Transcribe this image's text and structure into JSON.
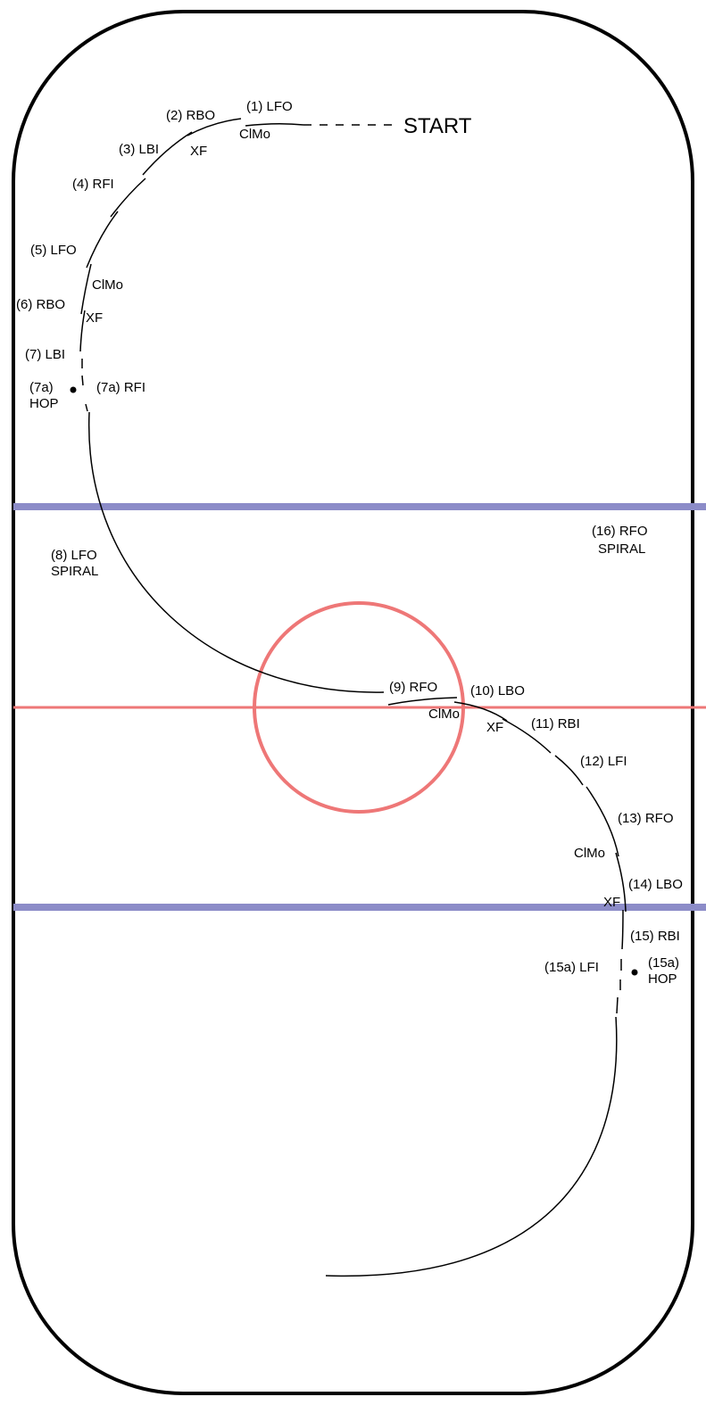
{
  "colors": {
    "rink_border": "#000000",
    "blue_lines": "#8c8cc8",
    "center_red_line": "#ee7777",
    "center_circle": "#ee7777",
    "pattern_line": "#000000"
  },
  "start_label": "START",
  "labels": {
    "l1": "(1) LFO",
    "l2": "(2) RBO",
    "clmo1": "ClMo",
    "l3": "(3) LBI",
    "xf1": "XF",
    "l4": "(4) RFI",
    "l5": "(5) LFO",
    "clmo2": "ClMo",
    "l6": "(6) RBO",
    "xf2": "XF",
    "l7": "(7) LBI",
    "l7a_num": "(7a)",
    "l7a_hop": "HOP",
    "l7a_rfi": "(7a) RFI",
    "l8a": "(8) LFO",
    "l8b": "SPIRAL",
    "l9": "(9) RFO",
    "l10": "(10) LBO",
    "clmo3": "ClMo",
    "xf3": "XF",
    "l11": "(11) RBI",
    "l12": "(12) LFI",
    "l13": "(13) RFO",
    "clmo4": "ClMo",
    "l14": "(14) LBO",
    "xf4": "XF",
    "l15": "(15) RBI",
    "l15a_lfi": "(15a) LFI",
    "l15a_num": "(15a)",
    "l15a_hop": "HOP",
    "l16a": "(16) RFO",
    "l16b": "SPIRAL"
  }
}
